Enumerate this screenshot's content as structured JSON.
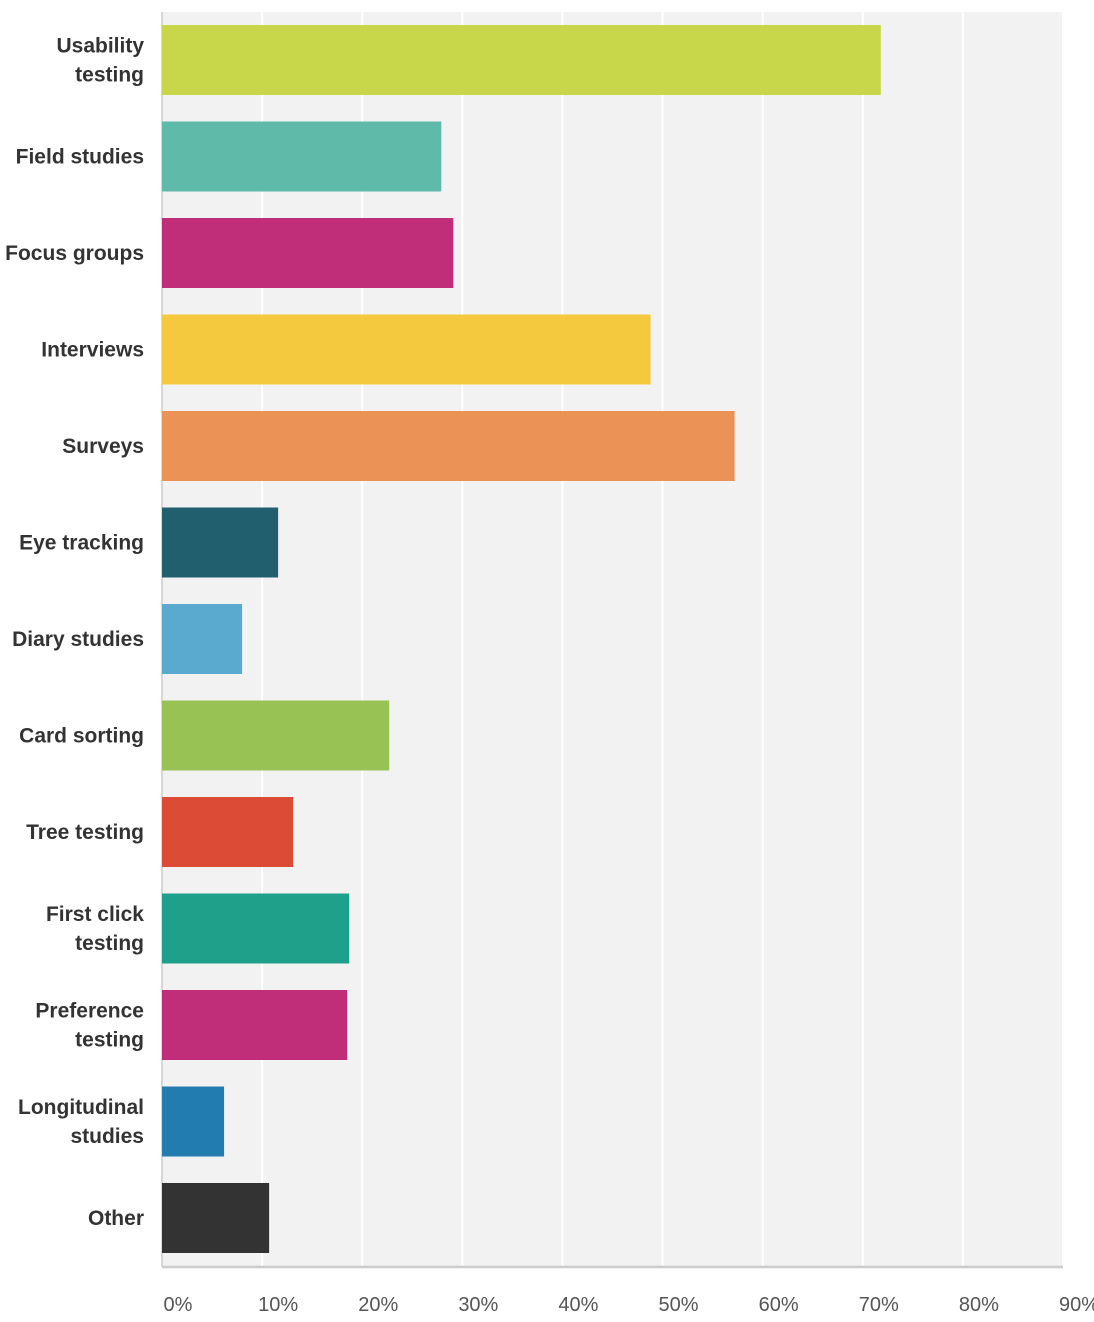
{
  "chart_data": {
    "type": "bar",
    "orientation": "horizontal",
    "categories": [
      [
        "Usability",
        "testing"
      ],
      [
        "Field studies"
      ],
      [
        "Focus groups"
      ],
      [
        "Interviews"
      ],
      [
        "Surveys"
      ],
      [
        "Eye tracking"
      ],
      [
        "Diary studies"
      ],
      [
        "Card sorting"
      ],
      [
        "Tree testing"
      ],
      [
        "First click",
        "testing"
      ],
      [
        "Preference",
        "testing"
      ],
      [
        "Longitudinal",
        "studies"
      ],
      [
        "Other"
      ]
    ],
    "values": [
      71.8,
      27.9,
      29.1,
      48.8,
      57.2,
      11.6,
      8.0,
      22.7,
      13.1,
      18.7,
      18.5,
      6.2,
      10.7
    ],
    "colors": [
      "#c8d64a",
      "#5fbaaa",
      "#c02e7a",
      "#f5c93e",
      "#eb9256",
      "#215e6e",
      "#5aa9ce",
      "#99c255",
      "#db4b35",
      "#1fa08a",
      "#c02e7a",
      "#237caf",
      "#333333"
    ],
    "xlim": [
      0,
      90
    ],
    "x_ticks": [
      "0%",
      "10%",
      "20%",
      "30%",
      "40%",
      "50%",
      "60%",
      "70%",
      "80%",
      "90%"
    ],
    "x_tick_values": [
      0,
      10,
      20,
      30,
      40,
      50,
      60,
      70,
      80,
      90
    ],
    "grid": true,
    "plot_background": "#f3f2f2",
    "title": "",
    "xlabel": "",
    "ylabel": ""
  }
}
